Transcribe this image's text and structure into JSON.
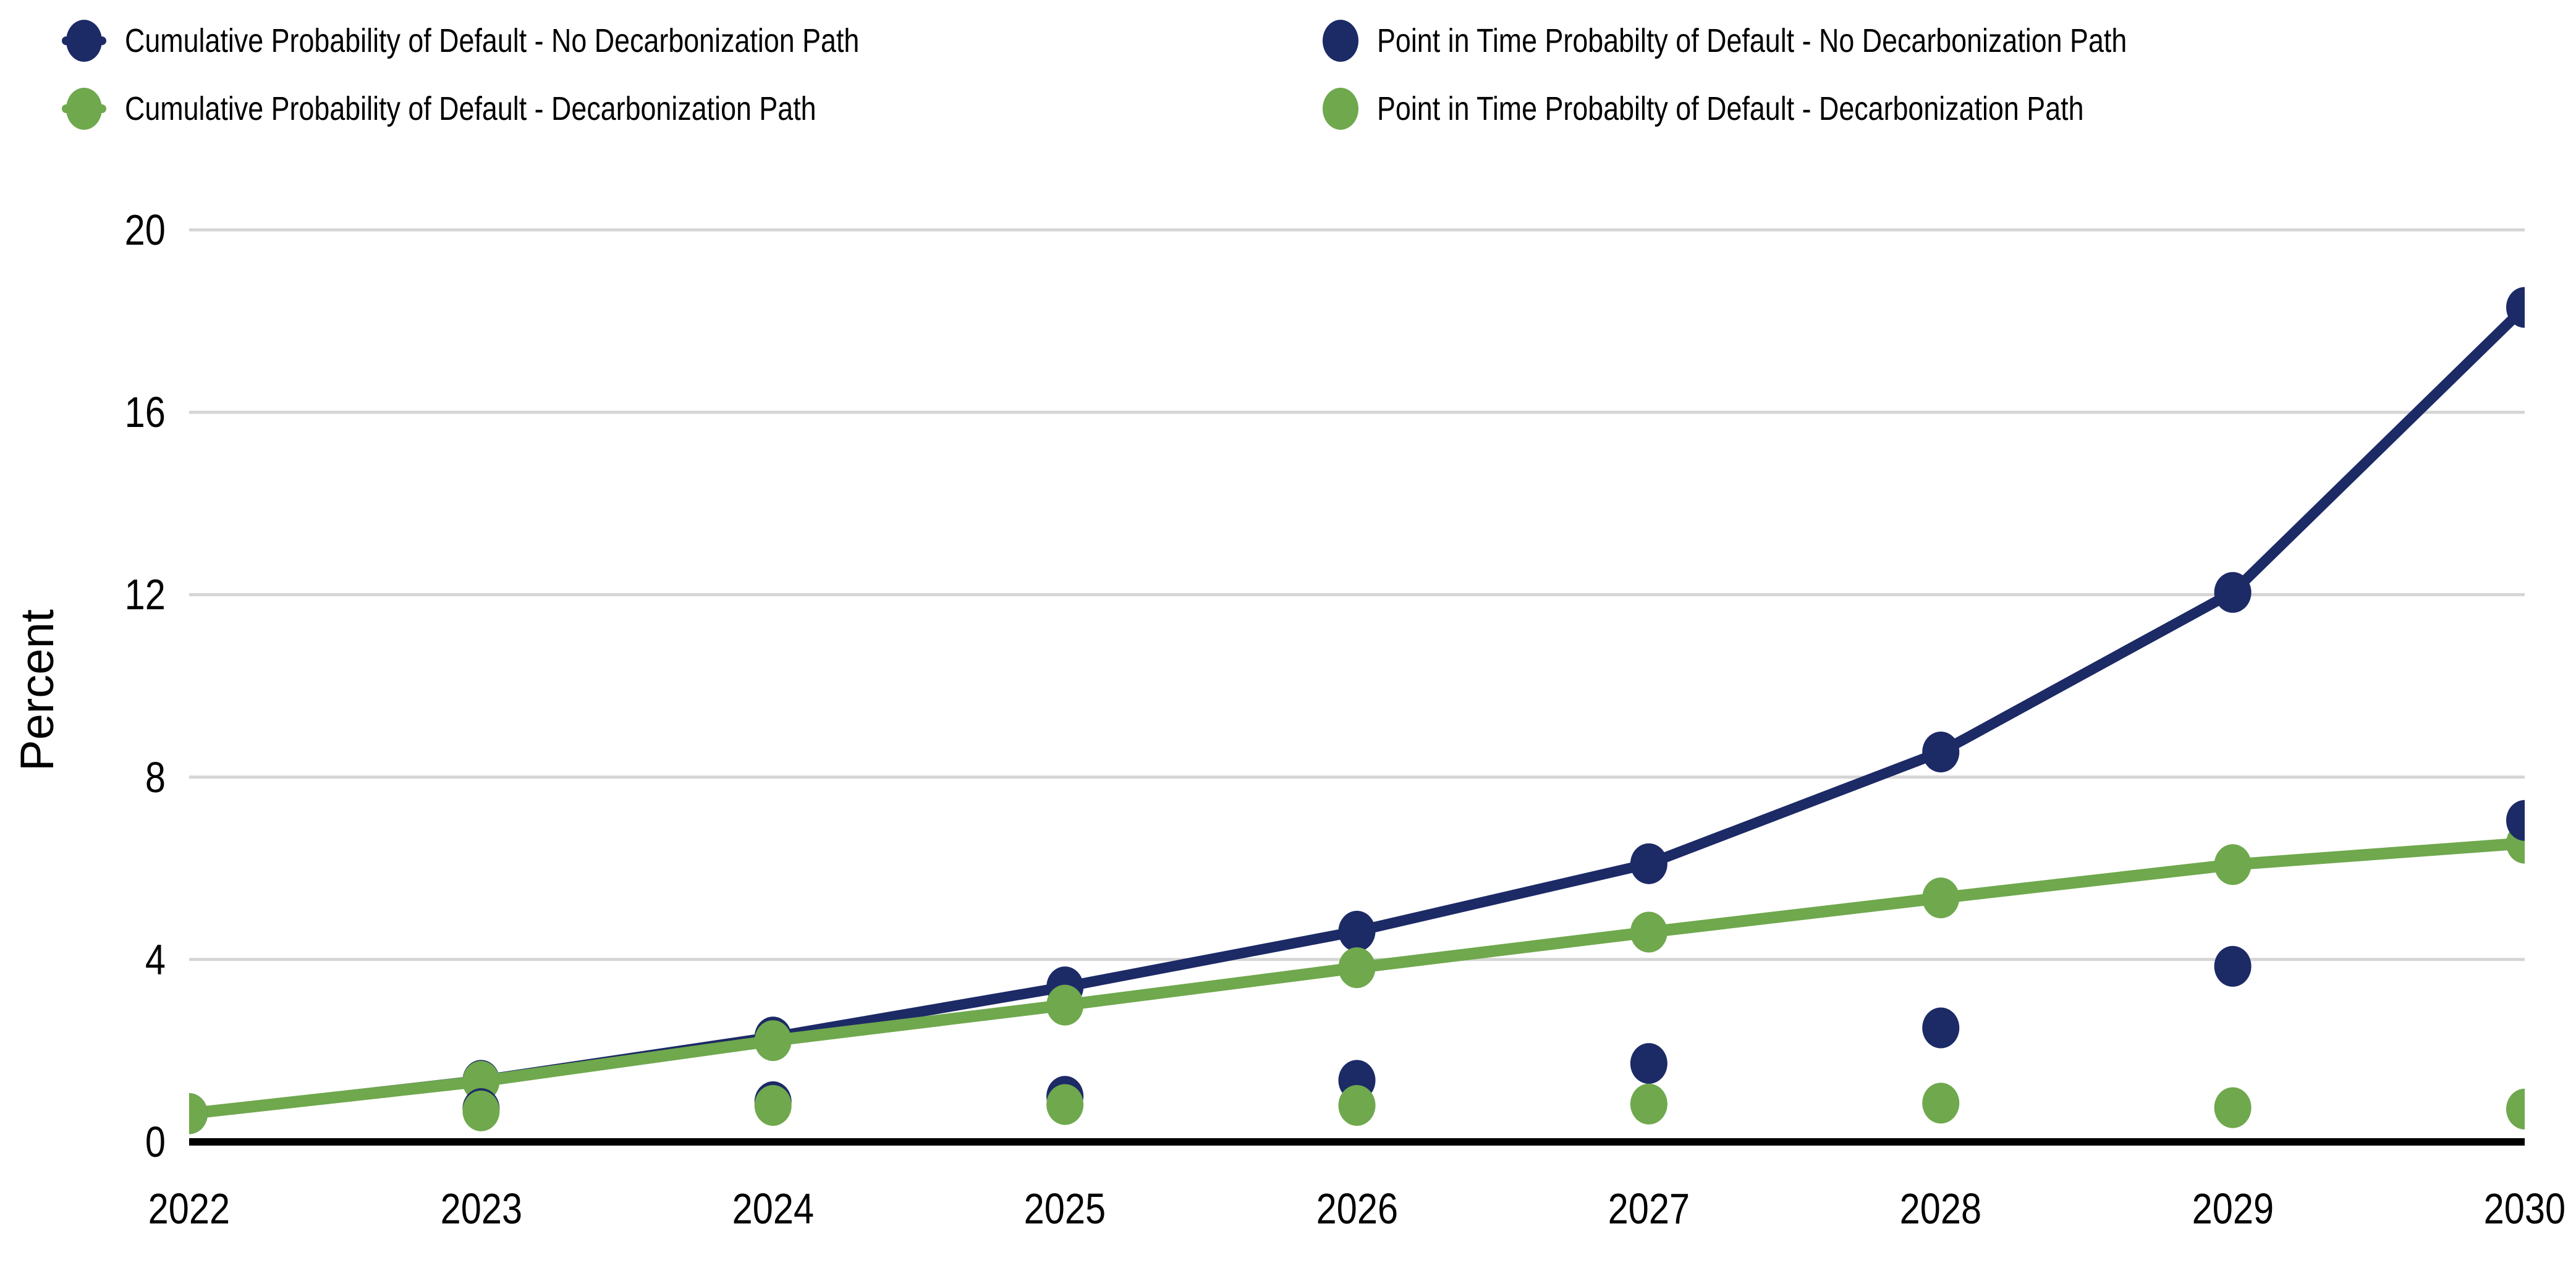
{
  "colors": {
    "navy": "#1C2A66",
    "green": "#6FA84D",
    "gridline": "#D5D5D5",
    "axis": "#000000",
    "text": "#000000",
    "background": "#FFFFFF"
  },
  "legend": {
    "position": "top",
    "items": [
      {
        "label": "Cumulative Probability of Default - No Decarbonization Path",
        "marker": "line-dot",
        "color": "#1C2A66"
      },
      {
        "label": "Cumulative Probability of Default - Decarbonization Path",
        "marker": "line-dot",
        "color": "#6FA84D"
      },
      {
        "label": "Point in Time Probabilty of Default - No Decarbonization Path",
        "marker": "dot",
        "color": "#1C2A66"
      },
      {
        "label": "Point in Time Probabilty of Default - Decarbonization Path",
        "marker": "dot",
        "color": "#6FA84D"
      }
    ]
  },
  "chart_data": {
    "type": "line",
    "title": "",
    "xlabel": "",
    "ylabel": "Percent",
    "x": [
      2022,
      2023,
      2024,
      2025,
      2026,
      2027,
      2028,
      2029,
      2030
    ],
    "ylim": [
      0,
      20
    ],
    "yticks": [
      0,
      4,
      8,
      12,
      16,
      20
    ],
    "grid": "horizontal",
    "legend_position": "top",
    "series": [
      {
        "name": "Cumulative Probability of Default - No Decarbonization Path",
        "type": "line",
        "color": "#1C2A66",
        "values": [
          0.62,
          1.35,
          2.3,
          3.4,
          4.62,
          6.1,
          8.55,
          12.05,
          18.3
        ]
      },
      {
        "name": "Cumulative Probability of Default - Decarbonization Path",
        "type": "line",
        "color": "#6FA84D",
        "values": [
          0.62,
          1.33,
          2.22,
          3.0,
          3.82,
          4.6,
          5.35,
          6.08,
          6.55
        ]
      },
      {
        "name": "Point in Time Probabilty of Default - No Decarbonization Path",
        "type": "scatter",
        "color": "#1C2A66",
        "values": [
          0.62,
          0.73,
          0.88,
          1.0,
          1.35,
          1.72,
          2.5,
          3.85,
          7.05
        ]
      },
      {
        "name": "Point in Time Probabilty of Default - Decarbonization Path",
        "type": "scatter",
        "color": "#6FA84D",
        "values": [
          0.62,
          0.68,
          0.8,
          0.82,
          0.8,
          0.83,
          0.85,
          0.75,
          0.72
        ]
      }
    ]
  }
}
